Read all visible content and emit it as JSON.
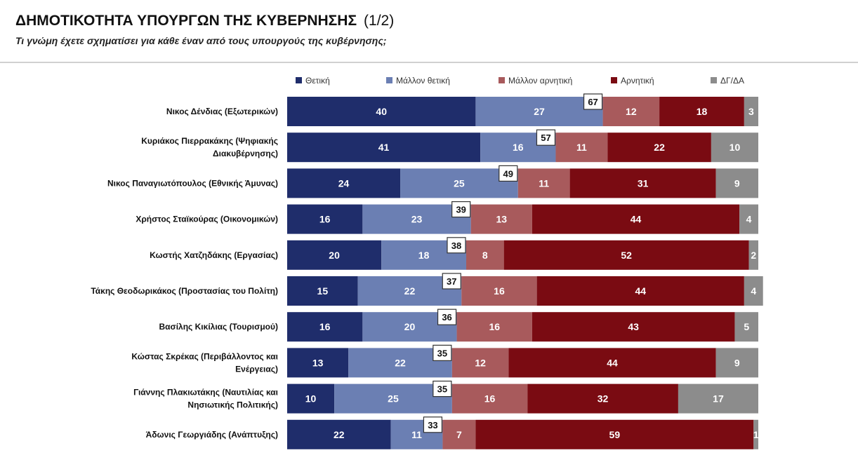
{
  "header": {
    "title": "ΔΗΜΟΤΙΚΟΤΗΤΑ ΥΠΟΥΡΓΩΝ ΤΗΣ ΚΥΒΕΡΝΗΣΗΣ",
    "title_suffix": "(1/2)",
    "subtitle": "Τι γνώμη έχετε σχηματίσει για κάθε έναν από τους υπουργούς της κυβέρνησης;"
  },
  "chart_data": {
    "type": "bar",
    "orientation": "horizontal",
    "stacked": true,
    "legend_position": "top",
    "grid": false,
    "xlim": [
      0,
      100
    ],
    "title": "ΔΗΜΟΤΙΚΟΤΗΤΑ ΥΠΟΥΡΓΩΝ ΤΗΣ ΚΥΒΕΡΝΗΣΗΣ (1/2)",
    "subtitle": "Τι γνώμη έχετε σχηματίσει για κάθε έναν από τους υπουργούς της κυβέρνησης;",
    "categories": [
      [
        "Νικος Δένδιας (Εξωτερικών)"
      ],
      [
        "Κυριάκος Πιερρακάκης (Ψηφιακής",
        "Διακυβέρνησης)"
      ],
      [
        "Νικος Παναγιωτόπουλος (Εθνικής Άμυνας)"
      ],
      [
        "Χρήστος Σταϊκούρας (Οικονομικών)"
      ],
      [
        "Κωστής Χατζηδάκης (Εργασίας)"
      ],
      [
        "Τάκης Θεοδωρικάκος (Προστασίας του Πολίτη)"
      ],
      [
        "Βασίλης Κικίλιας (Τουρισμού)"
      ],
      [
        "Κώστας Σκρέκας (Περιβάλλοντος και",
        "Ενέργειας)"
      ],
      [
        "Γιάννης Πλακιωτάκης (Ναυτιλίας και",
        "Νησιωτικής Πολιτικής)"
      ],
      [
        "Άδωνις Γεωργιάδης (Ανάπτυξης)"
      ]
    ],
    "series": [
      {
        "name": "Θετική",
        "color": "#1f2d6b",
        "values": [
          40,
          41,
          24,
          16,
          20,
          15,
          16,
          13,
          10,
          22
        ]
      },
      {
        "name": "Μάλλον θετική",
        "color": "#6b7fb3",
        "values": [
          27,
          16,
          25,
          23,
          18,
          22,
          20,
          22,
          25,
          11
        ]
      },
      {
        "name": "Μάλλον αρνητική",
        "color": "#a85a5c",
        "values": [
          12,
          11,
          11,
          13,
          8,
          16,
          16,
          12,
          16,
          7
        ]
      },
      {
        "name": "Αρνητική",
        "color": "#7a0b12",
        "values": [
          18,
          22,
          31,
          44,
          52,
          44,
          43,
          44,
          32,
          59
        ]
      },
      {
        "name": "ΔΓ/ΔΑ",
        "color": "#8c8c8c",
        "values": [
          3,
          10,
          9,
          4,
          2,
          4,
          5,
          9,
          17,
          1
        ]
      }
    ],
    "positive_totals": [
      67,
      57,
      49,
      39,
      38,
      37,
      36,
      35,
      35,
      33
    ]
  }
}
